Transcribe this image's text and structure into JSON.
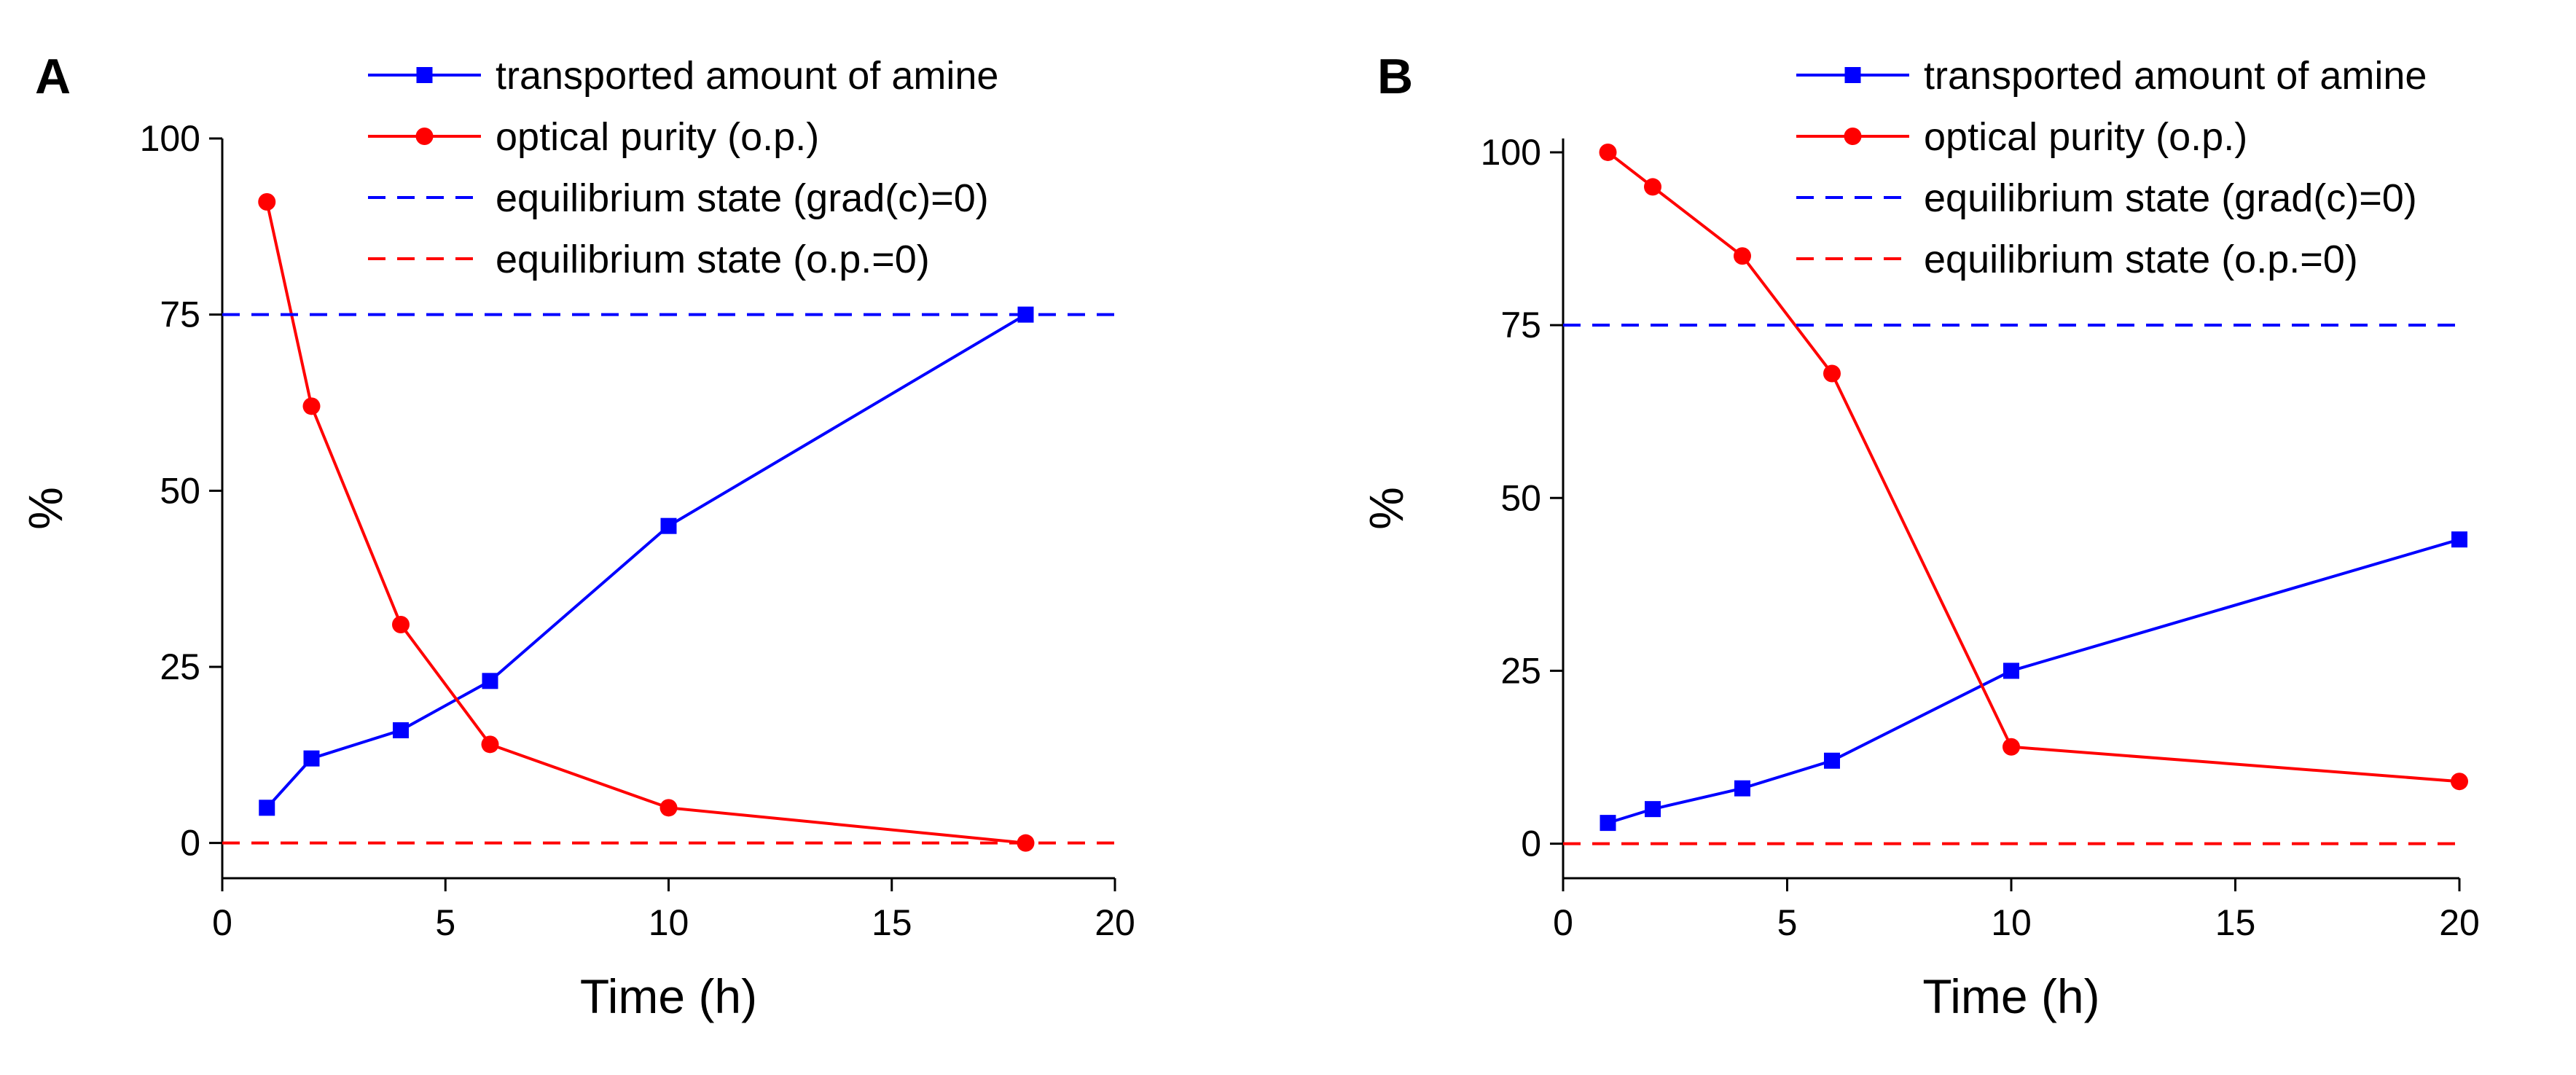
{
  "chart_data": [
    {
      "panel": "A",
      "type": "line",
      "xlabel": "Time (h)",
      "ylabel": "%",
      "xlim": [
        0,
        20
      ],
      "ylim": [
        -5,
        100
      ],
      "xticks": [
        0,
        5,
        10,
        15,
        20
      ],
      "yticks": [
        0,
        25,
        50,
        75,
        100
      ],
      "grid": false,
      "legend": "top-right",
      "series": [
        {
          "name": "transported amount of amine",
          "color": "#0000ff",
          "marker": "square",
          "style": "solid",
          "x": [
            1,
            2,
            4,
            6,
            10,
            18
          ],
          "y": [
            5,
            12,
            16,
            23,
            45,
            75
          ]
        },
        {
          "name": "optical purity (o.p.)",
          "color": "#ff0000",
          "marker": "circle",
          "style": "solid",
          "x": [
            1,
            2,
            4,
            6,
            10,
            18
          ],
          "y": [
            91,
            62,
            31,
            14,
            5,
            0
          ]
        },
        {
          "name": "equilibrium state (grad(c)=0)",
          "color": "#0000ff",
          "marker": "none",
          "style": "dashed",
          "y_constant": 75
        },
        {
          "name": "equilibrium state (o.p.=0)",
          "color": "#ff0000",
          "marker": "none",
          "style": "dashed",
          "y_constant": 0
        }
      ]
    },
    {
      "panel": "B",
      "type": "line",
      "xlabel": "Time (h)",
      "ylabel": "%",
      "xlim": [
        0,
        20
      ],
      "ylim": [
        -5,
        102
      ],
      "xticks": [
        0,
        5,
        10,
        15,
        20
      ],
      "yticks": [
        0,
        25,
        50,
        75,
        100
      ],
      "grid": false,
      "legend": "top-right",
      "series": [
        {
          "name": "transported amount of amine",
          "color": "#0000ff",
          "marker": "square",
          "style": "solid",
          "x": [
            1,
            2,
            4,
            6,
            10,
            20
          ],
          "y": [
            3,
            5,
            8,
            12,
            25,
            44
          ]
        },
        {
          "name": "optical purity (o.p.)",
          "color": "#ff0000",
          "marker": "circle",
          "style": "solid",
          "x": [
            1,
            2,
            4,
            6,
            10,
            20
          ],
          "y": [
            100,
            95,
            85,
            68,
            14,
            9
          ]
        },
        {
          "name": "equilibrium state (grad(c)=0)",
          "color": "#0000ff",
          "marker": "none",
          "style": "dashed",
          "y_constant": 75
        },
        {
          "name": "equilibrium state (o.p.=0)",
          "color": "#ff0000",
          "marker": "none",
          "style": "dashed",
          "y_constant": 0
        }
      ]
    }
  ]
}
